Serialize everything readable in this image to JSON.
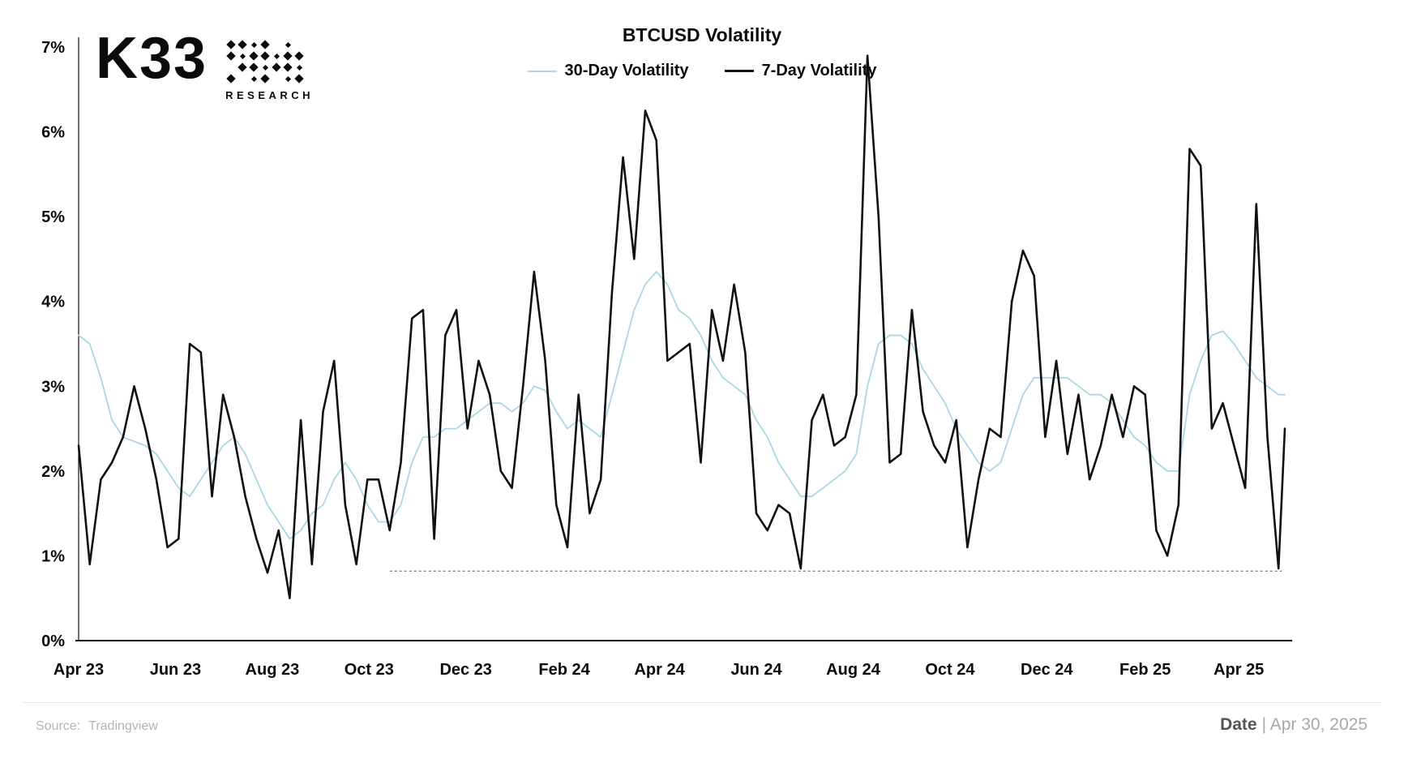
{
  "header": {
    "logo_text": "K33",
    "logo_subtext": "RESEARCH"
  },
  "footer": {
    "source_label": "Source:",
    "source_value": "Tradingview",
    "date_label": "Date",
    "date_rest": "| Apr 30, 2025"
  },
  "chart_data": {
    "type": "line",
    "title": "BTCUSD Volatility",
    "xlabel": "",
    "ylabel": "",
    "grid": false,
    "legend_position": "top-center",
    "ylim": [
      0,
      7
    ],
    "x_range": [
      "2023-04-01",
      "2025-04-30"
    ],
    "y_ticks": [
      {
        "label": "0%",
        "value": 0
      },
      {
        "label": "1%",
        "value": 1
      },
      {
        "label": "2%",
        "value": 2
      },
      {
        "label": "3%",
        "value": 3
      },
      {
        "label": "4%",
        "value": 4
      },
      {
        "label": "5%",
        "value": 5
      },
      {
        "label": "6%",
        "value": 6
      },
      {
        "label": "7%",
        "value": 7
      }
    ],
    "x_ticks": [
      {
        "label": "Apr 23",
        "date": "2023-04-01"
      },
      {
        "label": "Jun 23",
        "date": "2023-06-01"
      },
      {
        "label": "Aug 23",
        "date": "2023-08-01"
      },
      {
        "label": "Oct 23",
        "date": "2023-10-01"
      },
      {
        "label": "Dec 23",
        "date": "2023-12-01"
      },
      {
        "label": "Feb 24",
        "date": "2024-02-01"
      },
      {
        "label": "Apr 24",
        "date": "2024-04-01"
      },
      {
        "label": "Jun 24",
        "date": "2024-06-01"
      },
      {
        "label": "Aug 24",
        "date": "2024-08-01"
      },
      {
        "label": "Oct 24",
        "date": "2024-10-01"
      },
      {
        "label": "Dec 24",
        "date": "2024-12-01"
      },
      {
        "label": "Feb 25",
        "date": "2025-02-01"
      },
      {
        "label": "Apr 25",
        "date": "2025-04-01"
      }
    ],
    "annotations": [
      {
        "type": "dashed-min-line",
        "value": 0.82,
        "from": "2023-10-14",
        "to": "2025-04-28",
        "color": "#555555"
      }
    ],
    "dates": [
      "2023-04-01",
      "2023-04-08",
      "2023-04-15",
      "2023-04-22",
      "2023-04-29",
      "2023-05-06",
      "2023-05-13",
      "2023-05-20",
      "2023-05-27",
      "2023-06-03",
      "2023-06-10",
      "2023-06-17",
      "2023-06-24",
      "2023-07-01",
      "2023-07-08",
      "2023-07-15",
      "2023-07-22",
      "2023-07-29",
      "2023-08-05",
      "2023-08-12",
      "2023-08-19",
      "2023-08-26",
      "2023-09-02",
      "2023-09-09",
      "2023-09-16",
      "2023-09-23",
      "2023-09-30",
      "2023-10-07",
      "2023-10-14",
      "2023-10-21",
      "2023-10-28",
      "2023-11-04",
      "2023-11-11",
      "2023-11-18",
      "2023-11-25",
      "2023-12-02",
      "2023-12-09",
      "2023-12-16",
      "2023-12-23",
      "2023-12-30",
      "2024-01-06",
      "2024-01-13",
      "2024-01-20",
      "2024-01-27",
      "2024-02-03",
      "2024-02-10",
      "2024-02-17",
      "2024-02-24",
      "2024-03-02",
      "2024-03-09",
      "2024-03-16",
      "2024-03-23",
      "2024-03-30",
      "2024-04-06",
      "2024-04-13",
      "2024-04-20",
      "2024-04-27",
      "2024-05-04",
      "2024-05-11",
      "2024-05-18",
      "2024-05-25",
      "2024-06-01",
      "2024-06-08",
      "2024-06-15",
      "2024-06-22",
      "2024-06-29",
      "2024-07-06",
      "2024-07-13",
      "2024-07-20",
      "2024-07-27",
      "2024-08-03",
      "2024-08-10",
      "2024-08-17",
      "2024-08-24",
      "2024-08-31",
      "2024-09-07",
      "2024-09-14",
      "2024-09-21",
      "2024-09-28",
      "2024-10-05",
      "2024-10-12",
      "2024-10-19",
      "2024-10-26",
      "2024-11-02",
      "2024-11-09",
      "2024-11-16",
      "2024-11-23",
      "2024-11-30",
      "2024-12-07",
      "2024-12-14",
      "2024-12-21",
      "2024-12-28",
      "2025-01-04",
      "2025-01-11",
      "2025-01-18",
      "2025-01-25",
      "2025-02-01",
      "2025-02-08",
      "2025-02-15",
      "2025-02-22",
      "2025-03-01",
      "2025-03-08",
      "2025-03-15",
      "2025-03-22",
      "2025-03-29",
      "2025-04-05",
      "2025-04-12",
      "2025-04-19",
      "2025-04-26",
      "2025-04-30"
    ],
    "series": [
      {
        "name": "30-Day Volatility",
        "color": "#a9d7e6",
        "width": 1.8,
        "values": [
          3.6,
          3.5,
          3.1,
          2.6,
          2.4,
          2.35,
          2.3,
          2.2,
          2.0,
          1.8,
          1.7,
          1.9,
          2.1,
          2.3,
          2.4,
          2.2,
          1.9,
          1.6,
          1.4,
          1.2,
          1.3,
          1.5,
          1.6,
          1.9,
          2.1,
          1.9,
          1.6,
          1.4,
          1.4,
          1.6,
          2.1,
          2.4,
          2.4,
          2.5,
          2.5,
          2.6,
          2.7,
          2.8,
          2.8,
          2.7,
          2.8,
          3.0,
          2.95,
          2.7,
          2.5,
          2.6,
          2.5,
          2.4,
          2.9,
          3.4,
          3.9,
          4.2,
          4.35,
          4.2,
          3.9,
          3.8,
          3.6,
          3.3,
          3.1,
          3.0,
          2.9,
          2.6,
          2.4,
          2.1,
          1.9,
          1.7,
          1.7,
          1.8,
          1.9,
          2.0,
          2.2,
          3.0,
          3.5,
          3.6,
          3.6,
          3.5,
          3.2,
          3.0,
          2.8,
          2.5,
          2.3,
          2.1,
          2.0,
          2.1,
          2.5,
          2.9,
          3.1,
          3.1,
          3.1,
          3.1,
          3.0,
          2.9,
          2.9,
          2.8,
          2.6,
          2.4,
          2.3,
          2.1,
          2.0,
          2.0,
          2.9,
          3.3,
          3.6,
          3.65,
          3.5,
          3.3,
          3.1,
          3.0,
          2.9,
          2.9
        ]
      },
      {
        "name": "7-Day Volatility",
        "color": "#111111",
        "width": 2.6,
        "values": [
          2.3,
          0.9,
          1.9,
          2.1,
          2.4,
          3.0,
          2.5,
          1.9,
          1.1,
          1.2,
          3.5,
          3.4,
          1.7,
          2.9,
          2.4,
          1.7,
          1.2,
          0.8,
          1.3,
          0.5,
          2.6,
          0.9,
          2.7,
          3.3,
          1.6,
          0.9,
          1.9,
          1.9,
          1.3,
          2.1,
          3.8,
          3.9,
          1.2,
          3.6,
          3.9,
          2.5,
          3.3,
          2.9,
          2.0,
          1.8,
          3.0,
          4.35,
          3.3,
          1.6,
          1.1,
          2.9,
          1.5,
          1.9,
          4.1,
          5.7,
          4.5,
          6.25,
          5.9,
          3.3,
          3.4,
          3.5,
          2.1,
          3.9,
          3.3,
          4.2,
          3.4,
          1.5,
          1.3,
          1.6,
          1.5,
          0.85,
          2.6,
          2.9,
          2.3,
          2.4,
          2.9,
          6.9,
          5.0,
          2.1,
          2.2,
          3.9,
          2.7,
          2.3,
          2.1,
          2.6,
          1.1,
          1.9,
          2.5,
          2.4,
          4.0,
          4.6,
          4.3,
          2.4,
          3.3,
          2.2,
          2.9,
          1.9,
          2.3,
          2.9,
          2.4,
          3.0,
          2.9,
          1.3,
          1.0,
          1.6,
          5.8,
          5.6,
          2.5,
          2.8,
          2.3,
          1.8,
          5.15,
          2.4,
          0.85,
          2.5
        ]
      }
    ]
  }
}
